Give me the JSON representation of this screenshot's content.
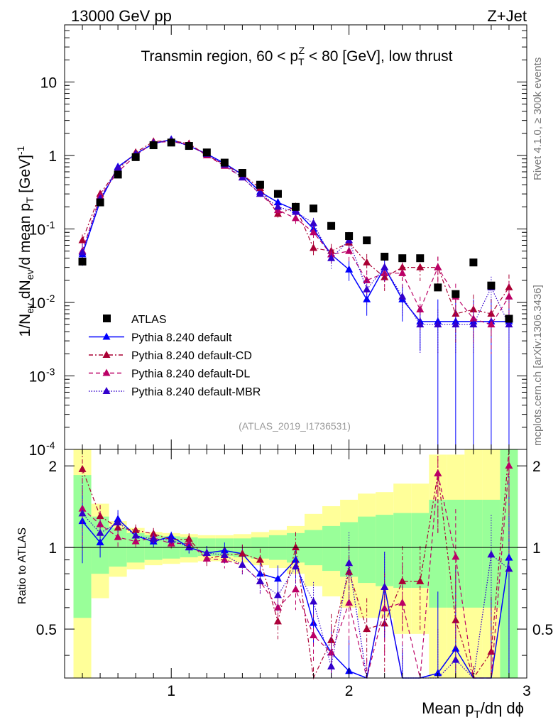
{
  "header": {
    "energy_label": "13000 GeV pp",
    "process_label": "Z+Jet"
  },
  "side": {
    "rivet_label": "Rivet 4.1.0, ≥ 300k events",
    "site_label": "mcplots.cern.ch [arXiv:1306.3436]"
  },
  "chart_data": {
    "type": "scatter",
    "title": "Transmin region, 60 < p_T^Z < 80 [GeV], low thrust",
    "analysis_id": "(ATLAS_2019_I1736531)",
    "xlabel": "Mean p_T/dη dϕ",
    "ylabel": "1/N_ev dN_ev/d mean p_T [GeV]^-1",
    "ratio_ylabel": "Ratio to ATLAS",
    "xlim": [
      0.4,
      3.0
    ],
    "ylim": [
      0.0001,
      60
    ],
    "ratio_ylim": [
      0.33,
      2.3
    ],
    "x_ticks": [
      "1",
      "2",
      "3"
    ],
    "y_ticks": [
      "10^-4",
      "10^-3",
      "10^-2",
      "10^-1",
      "1",
      "10"
    ],
    "ratio_ticks": [
      "0.5",
      "1",
      "2"
    ],
    "legend": [
      "ATLAS",
      "Pythia 8.240 default",
      "Pythia 8.240 default-CD",
      "Pythia 8.240 default-DL",
      "Pythia 8.240 default-MBR"
    ],
    "x": [
      0.5,
      0.6,
      0.7,
      0.8,
      0.9,
      1.0,
      1.1,
      1.2,
      1.3,
      1.4,
      1.5,
      1.6,
      1.7,
      1.8,
      1.9,
      2.0,
      2.1,
      2.2,
      2.3,
      2.4,
      2.5,
      2.6,
      2.7,
      2.8,
      2.9
    ],
    "data_values": [
      0.036,
      0.23,
      0.55,
      0.95,
      1.38,
      1.5,
      1.35,
      1.1,
      0.8,
      0.58,
      0.4,
      0.3,
      0.2,
      0.19,
      0.11,
      0.08,
      0.07,
      0.042,
      0.04,
      0.04,
      0.016,
      0.013,
      0.035,
      0.017,
      0.006
    ],
    "band_inner": [
      [
        0.55,
        1.85
      ],
      [
        0.8,
        1.3
      ],
      [
        0.85,
        1.18
      ],
      [
        0.88,
        1.13
      ],
      [
        0.9,
        1.11
      ],
      [
        0.91,
        1.1
      ],
      [
        0.92,
        1.09
      ],
      [
        0.93,
        1.08
      ],
      [
        0.93,
        1.08
      ],
      [
        0.92,
        1.08
      ],
      [
        0.91,
        1.09
      ],
      [
        0.9,
        1.11
      ],
      [
        0.88,
        1.13
      ],
      [
        0.86,
        1.16
      ],
      [
        0.82,
        1.2
      ],
      [
        0.78,
        1.24
      ],
      [
        0.74,
        1.3
      ],
      [
        0.72,
        1.32
      ],
      [
        0.71,
        1.34
      ],
      [
        0.71,
        1.34
      ],
      [
        0.6,
        1.5
      ],
      [
        0.6,
        1.5
      ],
      [
        0.6,
        1.5
      ],
      [
        0.6,
        1.5
      ],
      [
        0.2,
        2.5
      ]
    ],
    "band_outer": [
      [
        0.3,
        2.5
      ],
      [
        0.65,
        1.45
      ],
      [
        0.78,
        1.25
      ],
      [
        0.83,
        1.18
      ],
      [
        0.86,
        1.14
      ],
      [
        0.87,
        1.13
      ],
      [
        0.88,
        1.12
      ],
      [
        0.89,
        1.11
      ],
      [
        0.89,
        1.11
      ],
      [
        0.88,
        1.12
      ],
      [
        0.86,
        1.14
      ],
      [
        0.84,
        1.16
      ],
      [
        0.8,
        1.2
      ],
      [
        0.72,
        1.33
      ],
      [
        0.66,
        1.42
      ],
      [
        0.6,
        1.5
      ],
      [
        0.55,
        1.58
      ],
      [
        0.55,
        1.6
      ],
      [
        0.48,
        1.72
      ],
      [
        0.48,
        1.72
      ],
      [
        0.3,
        2.2
      ],
      [
        0.3,
        2.2
      ],
      [
        0.3,
        2.5
      ],
      [
        0.3,
        2.5
      ],
      [
        0.3,
        2.5
      ]
    ],
    "series": [
      {
        "name": "Pythia 8.240 default",
        "color": "#0000ff",
        "dash": "",
        "values": [
          0.045,
          0.24,
          0.7,
          1.05,
          1.45,
          1.65,
          1.35,
          1.05,
          0.78,
          0.55,
          0.32,
          0.23,
          0.18,
          0.1,
          0.045,
          0.028,
          0.011,
          0.03,
          0.011,
          0.0055,
          0.0055,
          0.0055,
          0.0055,
          0.0055,
          0.0055
        ],
        "errors": [
          0.3,
          0.12,
          0.08,
          0.05,
          0.05,
          0.04,
          0.05,
          0.06,
          0.07,
          0.08,
          0.1,
          0.12,
          0.14,
          0.18,
          0.25,
          0.3,
          0.4,
          0.35,
          0.5,
          0.6,
          1,
          1,
          1,
          1,
          1
        ]
      },
      {
        "name": "Pythia 8.240 default-CD",
        "color": "#aa0033",
        "dash": "6,3,2,3",
        "values": [
          0.07,
          0.3,
          0.65,
          1.1,
          1.55,
          1.6,
          1.45,
          1.0,
          0.75,
          0.55,
          0.36,
          0.16,
          0.2,
          0.055,
          0.05,
          0.065,
          0.035,
          0.022,
          0.03,
          0.03,
          0.03,
          0.007,
          0.008,
          0.007,
          0.016
        ],
        "errors": [
          0.2,
          0.1,
          0.07,
          0.05,
          0.05,
          0.04,
          0.05,
          0.06,
          0.07,
          0.08,
          0.1,
          0.14,
          0.14,
          0.25,
          0.25,
          0.25,
          0.3,
          0.35,
          0.35,
          0.35,
          0.4,
          0.6,
          0.6,
          0.6,
          0.5
        ]
      },
      {
        "name": "Pythia 8.240 default-DL",
        "color": "#bb0066",
        "dash": "6,4",
        "values": [
          0.05,
          0.28,
          0.6,
          1.0,
          1.5,
          1.55,
          1.4,
          1.0,
          0.72,
          0.5,
          0.3,
          0.18,
          0.14,
          0.09,
          0.045,
          0.05,
          0.02,
          0.025,
          0.025,
          0.008,
          0.03,
          0.012,
          0.006,
          0.005,
          0.012
        ],
        "errors": [
          0.3,
          0.12,
          0.08,
          0.05,
          0.05,
          0.04,
          0.05,
          0.06,
          0.07,
          0.08,
          0.1,
          0.14,
          0.16,
          0.2,
          0.25,
          0.3,
          0.35,
          0.35,
          0.4,
          0.5,
          0.4,
          0.5,
          0.6,
          0.6,
          0.6
        ]
      },
      {
        "name": "Pythia 8.240 default-MBR",
        "color": "#3300cc",
        "dash": "1.5,2",
        "values": [
          0.048,
          0.26,
          0.68,
          1.05,
          1.48,
          1.6,
          1.35,
          1.05,
          0.75,
          0.5,
          0.3,
          0.2,
          0.17,
          0.12,
          0.04,
          0.07,
          0.015,
          0.03,
          0.012,
          0.005,
          0.005,
          0.005,
          0.005,
          0.016,
          0.005
        ],
        "errors": [
          0.3,
          0.12,
          0.08,
          0.05,
          0.05,
          0.04,
          0.05,
          0.06,
          0.07,
          0.08,
          0.1,
          0.13,
          0.15,
          0.18,
          0.28,
          0.3,
          0.4,
          0.35,
          0.45,
          0.6,
          0.6,
          0.6,
          0.6,
          0.4,
          0.6
        ]
      }
    ]
  }
}
